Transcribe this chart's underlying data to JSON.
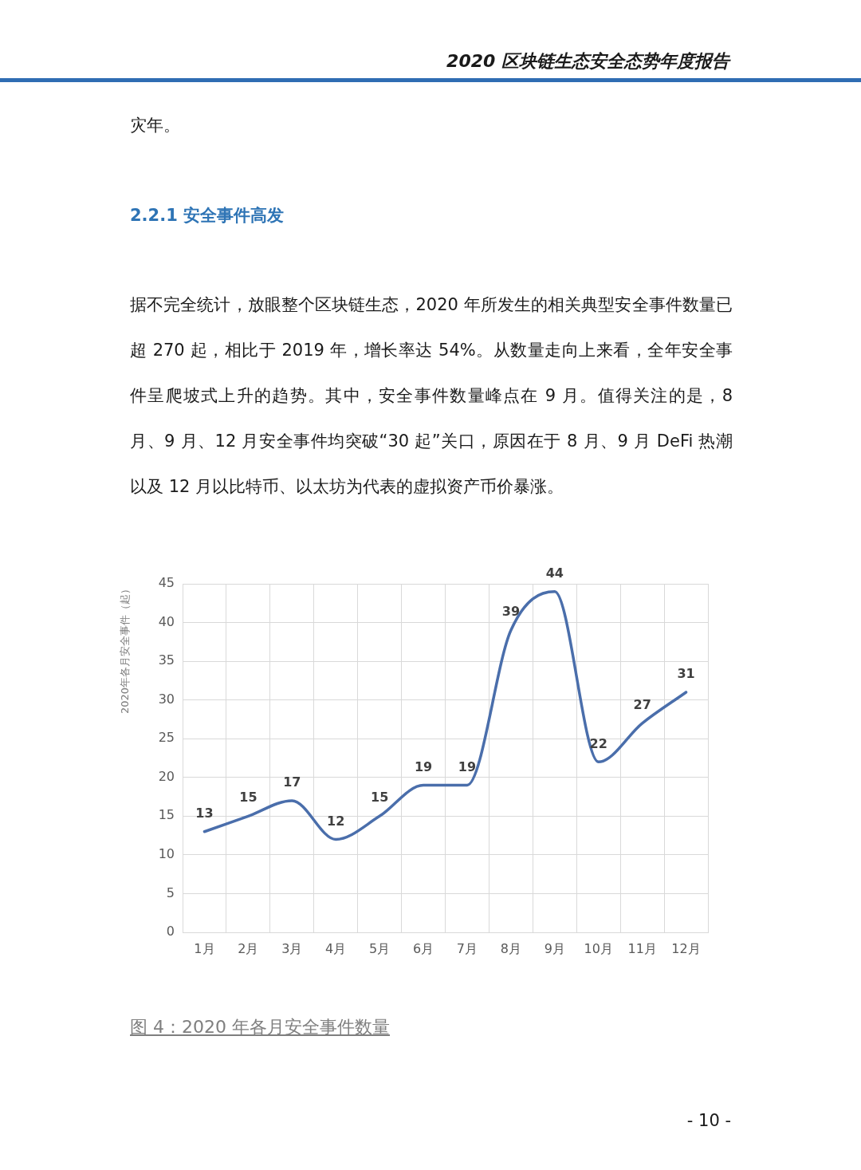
{
  "chart_data": {
    "type": "line",
    "title": "图 4：2020 年各月安全事件数量",
    "ylabel": "2020年各月安全事件（起）",
    "categories": [
      "1月",
      "2月",
      "3月",
      "4月",
      "5月",
      "6月",
      "7月",
      "8月",
      "9月",
      "10月",
      "11月",
      "12月"
    ],
    "values": [
      13,
      15,
      17,
      12,
      15,
      19,
      19,
      39,
      44,
      22,
      27,
      31
    ],
    "color": "#4a6eab",
    "ylim": [
      0,
      45
    ],
    "yticks": [
      0,
      5,
      10,
      15,
      20,
      25,
      30,
      35,
      40,
      45
    ],
    "grid": true,
    "legend": false,
    "marker": "none",
    "data_labels": true,
    "annotations": [
      "2020 区块链生态安全态势年度报告",
      "灾年。",
      "2.2.1 安全事件高发",
      "据不完全统计，放眼整个区块链生态，2020 年所发生的相关典型安全事件数量已超 270 起，相比于 2019 年，增长率达 54%。从数量走向上来看，全年安全事件呈爬坡式上升的趋势。其中，安全事件数量峰点在 9 月。值得关注的是，8 月、9 月、12 月安全事件均突破“30 起”关口，原因在于 8 月、9 月 DeFi 热潮以及 12 月以比特币、以太坊为代表的虚拟资产币价暴涨。",
      "- 10 -"
    ]
  }
}
